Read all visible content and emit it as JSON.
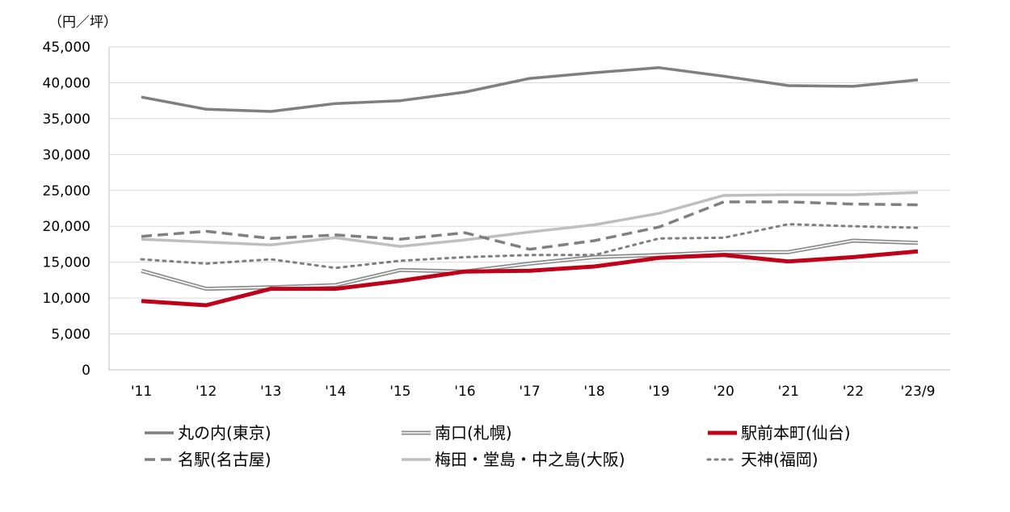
{
  "chart_data": {
    "type": "line",
    "unit_label": "（円／坪）",
    "categories": [
      "'11",
      "'12",
      "'13",
      "'14",
      "'15",
      "'16",
      "'17",
      "'18",
      "'19",
      "'20",
      "'21",
      "'22",
      "'23/9"
    ],
    "ylim": [
      0,
      45000
    ],
    "yticks": [
      0,
      5000,
      10000,
      15000,
      20000,
      25000,
      30000,
      35000,
      40000,
      45000
    ],
    "ytick_labels": [
      "0",
      "5,000",
      "10,000",
      "15,000",
      "20,000",
      "25,000",
      "30,000",
      "35,000",
      "40,000",
      "45,000"
    ],
    "grid": true,
    "legend_position": "bottom",
    "series": [
      {
        "name": "丸の内(東京)",
        "color": "#7f7f7f",
        "style": "solid",
        "values": [
          38000,
          36300,
          36000,
          37100,
          37500,
          38700,
          40600,
          41400,
          42100,
          40900,
          39600,
          39500,
          40400
        ]
      },
      {
        "name": "南口(札幌)",
        "color": "#8c8c8c",
        "style": "double",
        "values": [
          13800,
          11300,
          11500,
          11800,
          13900,
          13700,
          14800,
          15700,
          16000,
          16400,
          16400,
          18000,
          17700
        ]
      },
      {
        "name": "駅前本町(仙台)",
        "color": "#c00018",
        "style": "thick",
        "values": [
          9600,
          9000,
          11300,
          11300,
          12400,
          13700,
          13800,
          14400,
          15600,
          16000,
          15100,
          15700,
          16500
        ]
      },
      {
        "name": "名駅(名古屋)",
        "color": "#808080",
        "style": "dashed",
        "values": [
          18600,
          19300,
          18300,
          18800,
          18200,
          19100,
          16800,
          18000,
          19900,
          23400,
          23400,
          23100,
          23000
        ]
      },
      {
        "name": "梅田・堂島・中之島(大阪)",
        "color": "#bfbfbf",
        "style": "solid",
        "values": [
          18200,
          17800,
          17400,
          18400,
          17200,
          18100,
          19200,
          20200,
          21800,
          24300,
          24400,
          24400,
          24700
        ]
      },
      {
        "name": "天神(福岡)",
        "color": "#7f7f7f",
        "style": "dotted",
        "values": [
          15400,
          14800,
          15400,
          14200,
          15200,
          15700,
          16000,
          16000,
          18300,
          18400,
          20300,
          20000,
          19800
        ]
      }
    ]
  }
}
